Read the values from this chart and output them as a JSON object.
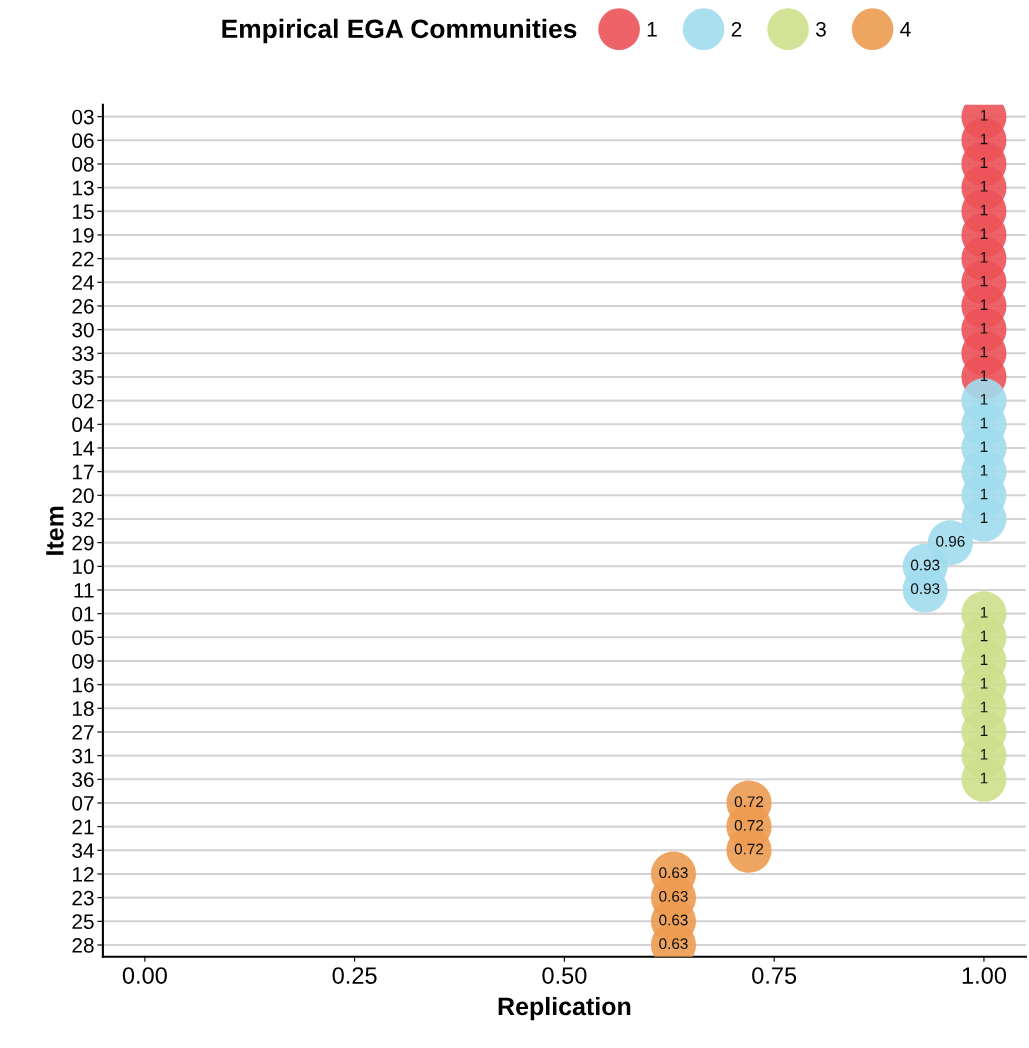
{
  "chart_data": {
    "type": "scatter",
    "orientation": "horizontal",
    "xlabel": "Replication",
    "ylabel": "Item",
    "legend_title": "Empirical EGA Communities",
    "legend": "top",
    "grid": "y",
    "marker": "circle",
    "data_labels": true,
    "categories": [
      "03",
      "06",
      "08",
      "13",
      "15",
      "19",
      "22",
      "24",
      "26",
      "30",
      "33",
      "35",
      "02",
      "04",
      "14",
      "17",
      "20",
      "32",
      "29",
      "10",
      "11",
      "01",
      "05",
      "09",
      "16",
      "18",
      "27",
      "31",
      "36",
      "07",
      "21",
      "34",
      "12",
      "23",
      "25",
      "28"
    ],
    "xlim": [
      -0.05,
      1.05
    ],
    "xticks": [
      {
        "value": 0,
        "label": "0.00"
      },
      {
        "value": 0.25,
        "label": "0.25"
      },
      {
        "value": 0.5,
        "label": "0.50"
      },
      {
        "value": 0.75,
        "label": "0.75"
      },
      {
        "value": 1,
        "label": "1.00"
      }
    ],
    "series": [
      {
        "name": "1",
        "color": "#ec5258",
        "values": [
          1,
          1,
          1,
          1,
          1,
          1,
          1,
          1,
          1,
          1,
          1,
          1,
          null,
          null,
          null,
          null,
          null,
          null,
          null,
          null,
          null,
          null,
          null,
          null,
          null,
          null,
          null,
          null,
          null,
          null,
          null,
          null,
          null,
          null,
          null,
          null
        ]
      },
      {
        "name": "2",
        "color": "#a1dcee",
        "values": [
          null,
          null,
          null,
          null,
          null,
          null,
          null,
          null,
          null,
          null,
          null,
          null,
          1,
          1,
          1,
          1,
          1,
          1,
          0.96,
          0.93,
          0.93,
          null,
          null,
          null,
          null,
          null,
          null,
          null,
          null,
          null,
          null,
          null,
          null,
          null,
          null,
          null
        ]
      },
      {
        "name": "3",
        "color": "#cddf8c",
        "values": [
          null,
          null,
          null,
          null,
          null,
          null,
          null,
          null,
          null,
          null,
          null,
          null,
          null,
          null,
          null,
          null,
          null,
          null,
          null,
          null,
          null,
          1,
          1,
          1,
          1,
          1,
          1,
          1,
          1,
          null,
          null,
          null,
          null,
          null,
          null,
          null
        ]
      },
      {
        "name": "4",
        "color": "#ed9b51",
        "values": [
          null,
          null,
          null,
          null,
          null,
          null,
          null,
          null,
          null,
          null,
          null,
          null,
          null,
          null,
          null,
          null,
          null,
          null,
          null,
          null,
          null,
          null,
          null,
          null,
          null,
          null,
          null,
          null,
          null,
          0.72,
          0.72,
          0.72,
          0.63,
          0.63,
          0.63,
          0.63
        ]
      }
    ]
  }
}
